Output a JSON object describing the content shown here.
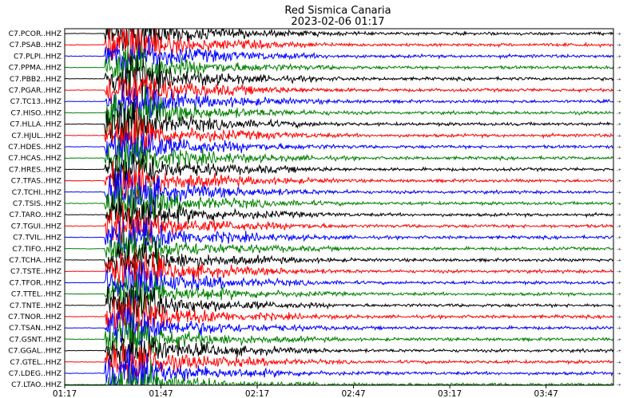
{
  "chart_data": {
    "type": "line",
    "title": "Red Sismica Canaria",
    "subtitle": "2023-02-06 01:17",
    "x_ticks": [
      "01:17",
      "01:47",
      "02:17",
      "02:47",
      "03:17",
      "03:47"
    ],
    "x_range_minutes": [
      0,
      171
    ],
    "event_onset_minutes": 12.5,
    "grid": false,
    "trace_colors": [
      "#000000",
      "#ff0000",
      "#0000ff",
      "#008000"
    ],
    "stations": [
      "C7.PCOR..HHZ",
      "C7.PSAB..HHZ",
      "C7.PLPI..HHZ",
      "C7.PPMA..HHZ",
      "C7.PBB2..HHZ",
      "C7.PGAR..HHZ",
      "C7.TC13..HHZ",
      "C7.HISO..HHZ",
      "C7.HLLA..HHZ",
      "C7.HJUL..HHZ",
      "C7.HDES..HHZ",
      "C7.HCAS..HHZ",
      "C7.HRES..HHZ",
      "C7.TFAS..HHZ",
      "C7.TCHI..HHZ",
      "C7.TSIS..HHZ",
      "C7.TARO..HHZ",
      "C7.TGUI..HHZ",
      "C7.TVIL..HHZ",
      "C7.TIFO..HHZ",
      "C7.TCHA..HHZ",
      "C7.TSTE..HHZ",
      "C7.TFOR..HHZ",
      "C7.TTEL..HHZ",
      "C7.TNTE..HHZ",
      "C7.TNOR..HHZ",
      "C7.TSAN..HHZ",
      "C7.GSNT..HHZ",
      "C7.GGAL..HHZ",
      "C7.GTEL..HHZ",
      "C7.LDEG..HHZ",
      "C7.LTAO..HHZ"
    ]
  }
}
